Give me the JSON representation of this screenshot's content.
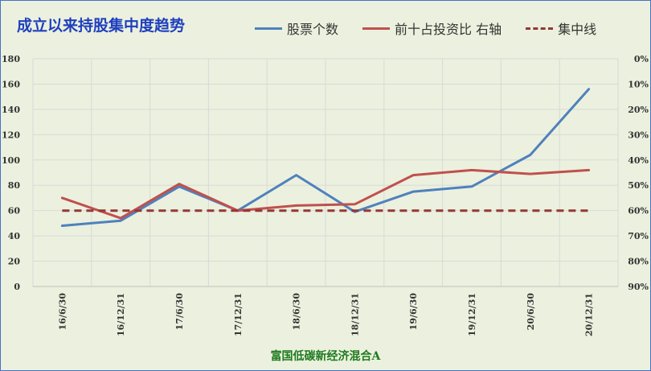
{
  "chart_data": {
    "type": "line",
    "title": "成立以来持股集中度趋势",
    "subtitle": "富国低碳新经济混合A",
    "categories": [
      "16/6/30",
      "16/12/31",
      "17/6/30",
      "17/12/31",
      "18/6/30",
      "18/12/31",
      "19/6/30",
      "19/12/31",
      "20/6/30",
      "20/12/31"
    ],
    "y_left": {
      "range": [
        0,
        180
      ],
      "ticks": [
        "0",
        "20",
        "40",
        "60",
        "80",
        "100",
        "120",
        "140",
        "160",
        "180"
      ]
    },
    "y_right": {
      "range": [
        0,
        0.9
      ],
      "inverted": true,
      "ticks": [
        "0%",
        "10%",
        "20%",
        "30%",
        "40%",
        "50%",
        "60%",
        "70%",
        "80%",
        "90%"
      ]
    },
    "grid": true,
    "legend_position": "top",
    "series": [
      {
        "name": "股票个数",
        "axis": "left",
        "color": "#4f81bd",
        "style": "solid",
        "values": [
          48,
          52,
          79,
          60,
          88,
          59,
          75,
          79,
          104,
          156
        ]
      },
      {
        "name": "前十占投资比 右轴",
        "axis": "right",
        "color": "#c0504d",
        "style": "solid",
        "values": [
          0.55,
          0.63,
          0.495,
          0.6,
          0.58,
          0.575,
          0.46,
          0.44,
          0.455,
          0.44
        ]
      },
      {
        "name": "集中线",
        "axis": "right",
        "color": "#953735",
        "style": "dashed",
        "values": [
          0.6,
          0.6,
          0.6,
          0.6,
          0.6,
          0.6,
          0.6,
          0.6,
          0.6,
          0.6
        ]
      }
    ]
  }
}
